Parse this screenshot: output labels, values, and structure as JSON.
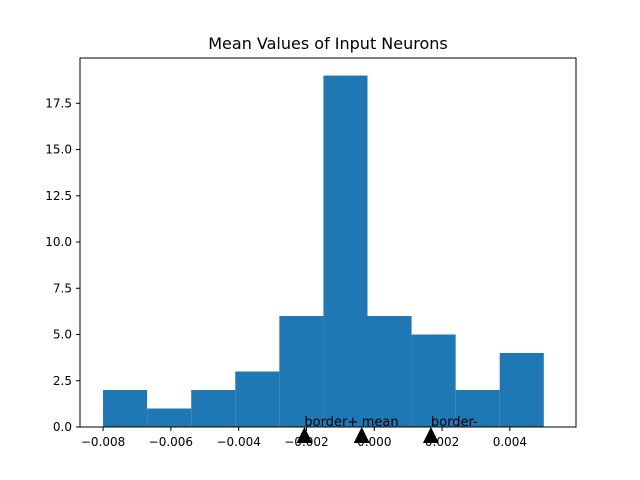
{
  "chart_data": {
    "type": "bar",
    "title": "Mean Values of Input Neurons",
    "xlabel": "",
    "ylabel": "",
    "xlim": [
      -0.00868,
      0.00595
    ],
    "ylim": [
      0,
      19.95
    ],
    "grid": false,
    "legend": "none",
    "bar_color": "#1f77b4",
    "bins": [
      {
        "x0": -0.008,
        "x1": -0.0067,
        "count": 2
      },
      {
        "x0": -0.0067,
        "x1": -0.0054,
        "count": 1
      },
      {
        "x0": -0.0054,
        "x1": -0.0041,
        "count": 2
      },
      {
        "x0": -0.0041,
        "x1": -0.0028,
        "count": 3
      },
      {
        "x0": -0.0028,
        "x1": -0.0015,
        "count": 6
      },
      {
        "x0": -0.0015,
        "x1": -0.0002,
        "count": 19
      },
      {
        "x0": -0.0002,
        "x1": 0.0011,
        "count": 6
      },
      {
        "x0": 0.0011,
        "x1": 0.0024,
        "count": 5
      },
      {
        "x0": 0.0024,
        "x1": 0.0037,
        "count": 2
      },
      {
        "x0": 0.0037,
        "x1": 0.005,
        "count": 4
      }
    ],
    "x_ticks": [
      -0.008,
      -0.006,
      -0.004,
      -0.002,
      0.0,
      0.002,
      0.004
    ],
    "x_tick_labels": [
      "−0.008",
      "−0.006",
      "−0.004",
      "−0.002",
      "0.000",
      "0.002",
      "0.004"
    ],
    "y_ticks": [
      0,
      2.5,
      5,
      7.5,
      10,
      12.5,
      15,
      17.5
    ],
    "y_tick_labels": [
      "0.0",
      "2.5",
      "5.0",
      "7.5",
      "10.0",
      "12.5",
      "15.0",
      "17.5"
    ],
    "markers": [
      {
        "label": "border+",
        "x": -0.00206
      },
      {
        "label": "mean",
        "x": -0.00037
      },
      {
        "label": "border-",
        "x": 0.00167
      }
    ]
  }
}
